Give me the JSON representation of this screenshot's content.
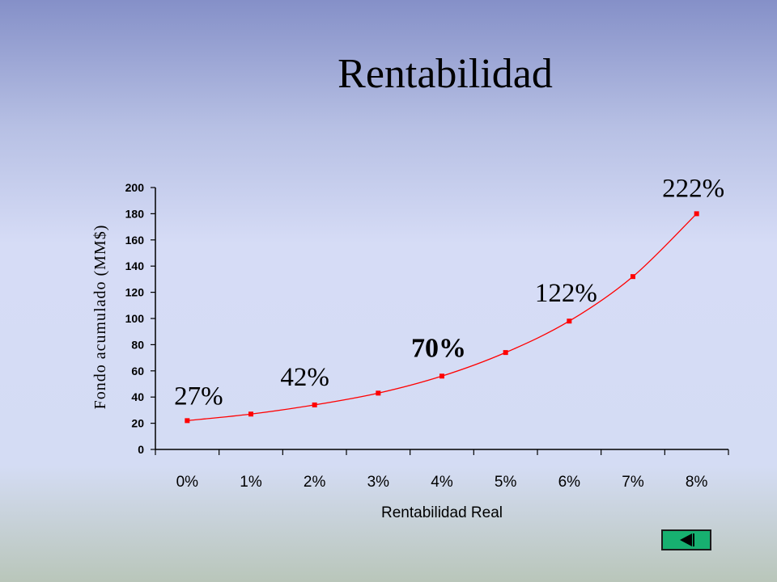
{
  "slide": {
    "title": "Rentabilidad"
  },
  "chart_data": {
    "type": "line",
    "title": "",
    "xlabel": "Rentabilidad Real",
    "ylabel": "Fondo acumulado (MM$)",
    "ylim": [
      0,
      200
    ],
    "yticks": [
      0,
      20,
      40,
      60,
      80,
      100,
      120,
      140,
      160,
      180,
      200
    ],
    "categories": [
      "0%",
      "1%",
      "2%",
      "3%",
      "4%",
      "5%",
      "6%",
      "7%",
      "8%"
    ],
    "series": [
      {
        "values": [
          22,
          27,
          34,
          43,
          56,
          74,
          98,
          132,
          180
        ],
        "color": "#ff0000"
      }
    ],
    "annotations": [
      {
        "text": "27%",
        "category": "0%",
        "bold": false
      },
      {
        "text": "42%",
        "category": "2%",
        "bold": false
      },
      {
        "text": "70%",
        "category": "4%",
        "bold": true
      },
      {
        "text": "122%",
        "category": "6%",
        "bold": false
      },
      {
        "text": "222%",
        "category": "8%",
        "bold": false
      }
    ],
    "grid": false,
    "legend": "none"
  },
  "navigation": {
    "back_icon": "back-triangle-icon",
    "button_color": "#17b070"
  }
}
